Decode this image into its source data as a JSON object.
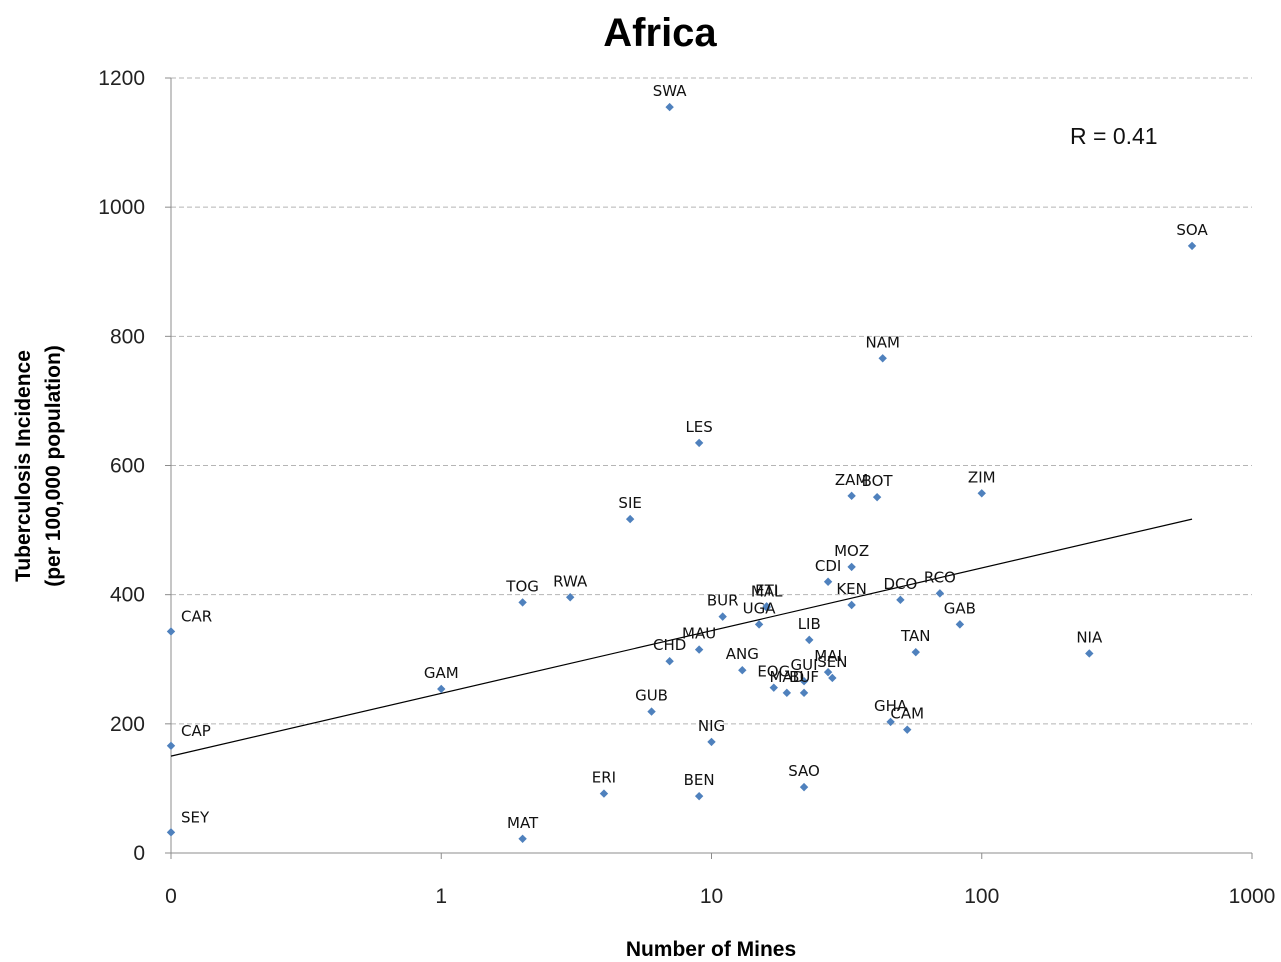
{
  "chart_data": {
    "type": "scatter",
    "title": "Africa",
    "xlabel": "Number of Mines",
    "ylabel_lines": [
      "Tuberculosis Incidence",
      "(per 100,000 population)"
    ],
    "x_scale": "log (0 plotted at left edge)",
    "xlim": [
      0,
      1000
    ],
    "ylim": [
      0,
      1200
    ],
    "x_ticks": [
      {
        "value": 0,
        "label": "0"
      },
      {
        "value": 1,
        "label": "1"
      },
      {
        "value": 10,
        "label": "10"
      },
      {
        "value": 100,
        "label": "100"
      },
      {
        "value": 1000,
        "label": "1000"
      }
    ],
    "y_ticks": [
      {
        "value": 0,
        "label": "0"
      },
      {
        "value": 200,
        "label": "200"
      },
      {
        "value": 400,
        "label": "400"
      },
      {
        "value": 600,
        "label": "600"
      },
      {
        "value": 800,
        "label": "800"
      },
      {
        "value": 1000,
        "label": "1000"
      },
      {
        "value": 1200,
        "label": "1200"
      }
    ],
    "grid": "horizontal dashed",
    "annotation": "R = 0.41",
    "trendline": {
      "x": [
        0,
        600
      ],
      "y": [
        150,
        517
      ]
    },
    "points": [
      {
        "label": "CAR",
        "x": 0,
        "y": 343
      },
      {
        "label": "CAP",
        "x": 0,
        "y": 166
      },
      {
        "label": "SEY",
        "x": 0,
        "y": 32
      },
      {
        "label": "GAM",
        "x": 1,
        "y": 254
      },
      {
        "label": "MAT",
        "x": 2,
        "y": 22
      },
      {
        "label": "TOG",
        "x": 2,
        "y": 388
      },
      {
        "label": "RWA",
        "x": 3,
        "y": 396
      },
      {
        "label": "ERI",
        "x": 4,
        "y": 92
      },
      {
        "label": "SIE",
        "x": 5,
        "y": 517
      },
      {
        "label": "GUB",
        "x": 6,
        "y": 219
      },
      {
        "label": "SWA",
        "x": 7,
        "y": 1155
      },
      {
        "label": "CHD",
        "x": 7,
        "y": 297
      },
      {
        "label": "LES",
        "x": 9,
        "y": 635
      },
      {
        "label": "MAU",
        "x": 9,
        "y": 315
      },
      {
        "label": "BEN",
        "x": 9,
        "y": 88
      },
      {
        "label": "NIG",
        "x": 10,
        "y": 172
      },
      {
        "label": "BUR",
        "x": 11,
        "y": 366
      },
      {
        "label": "ANG",
        "x": 13,
        "y": 283
      },
      {
        "label": "UGA",
        "x": 15,
        "y": 354
      },
      {
        "label": "MAL",
        "x": 16,
        "y": 380
      },
      {
        "label": "ETI",
        "x": 16,
        "y": 382
      },
      {
        "label": "EQG",
        "x": 17,
        "y": 256
      },
      {
        "label": "MAD",
        "x": 19,
        "y": 248
      },
      {
        "label": "SAO",
        "x": 22,
        "y": 102
      },
      {
        "label": "GUI",
        "x": 22,
        "y": 266
      },
      {
        "label": "BUF",
        "x": 22,
        "y": 248
      },
      {
        "label": "LIB",
        "x": 23,
        "y": 330
      },
      {
        "label": "CDI",
        "x": 27,
        "y": 420
      },
      {
        "label": "MAI",
        "x": 27,
        "y": 280
      },
      {
        "label": "SEN",
        "x": 28,
        "y": 271
      },
      {
        "label": "ZAM",
        "x": 33,
        "y": 553
      },
      {
        "label": "MOZ",
        "x": 33,
        "y": 443
      },
      {
        "label": "KEN",
        "x": 33,
        "y": 384
      },
      {
        "label": "BOT",
        "x": 41,
        "y": 551
      },
      {
        "label": "NAM",
        "x": 43,
        "y": 766
      },
      {
        "label": "GHA",
        "x": 46,
        "y": 203
      },
      {
        "label": "DCO",
        "x": 50,
        "y": 392
      },
      {
        "label": "CAM",
        "x": 53,
        "y": 191
      },
      {
        "label": "TAN",
        "x": 57,
        "y": 311
      },
      {
        "label": "RCO",
        "x": 70,
        "y": 402
      },
      {
        "label": "GAB",
        "x": 83,
        "y": 354
      },
      {
        "label": "ZIM",
        "x": 100,
        "y": 557
      },
      {
        "label": "NIA",
        "x": 250,
        "y": 309
      },
      {
        "label": "SOA",
        "x": 600,
        "y": 940
      }
    ]
  }
}
